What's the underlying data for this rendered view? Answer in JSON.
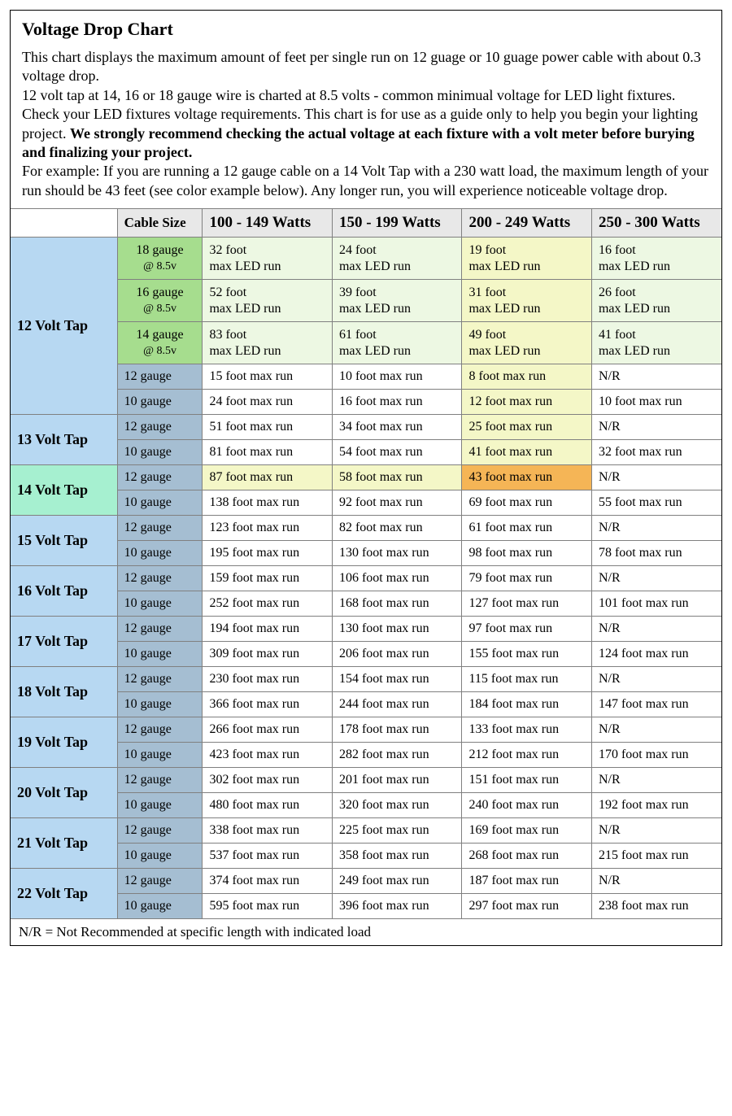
{
  "title": "Voltage Drop Chart",
  "intro": {
    "p1": "This chart displays the maximum amount of feet per single run on 12 guage or 10 guage power cable with about 0.3 voltage drop.",
    "p2a": "12 volt tap at 14, 16 or 18 gauge wire is charted at 8.5 volts - common minimual voltage for LED light fixtures. Check your LED fixtures voltage requirements. This chart is for use as a guide only to help you begin your lighting project. ",
    "p2bold": "We strongly recommend checking the actual voltage at each fixture with a volt meter before burying and finalizing your project.",
    "p3": "For example: If you are running a 12 gauge cable on a 14 Volt Tap with a 230 watt load, the maximum length of your run should be 43 feet (see color example below). Any longer run, you will experience noticeable voltage drop."
  },
  "columns": {
    "cableSize": "Cable Size",
    "w1": "100 - 149 Watts",
    "w2": "150 - 199 Watts",
    "w3": "200 - 249 Watts",
    "w4": "250 - 300 Watts"
  },
  "colors": {
    "tapBlue": "#b7d8f2",
    "tapMint": "#a6f0d0",
    "cableGreen": "#a6dd8e",
    "cableBlueGrey": "#a5bed2",
    "cellPaleGreen": "#edf8e3",
    "cellPaleYellow": "#f4f7c7",
    "cellYellow": "#f4f7c7",
    "cellOrange": "#f5b556",
    "rowHL": "#f4f7c7",
    "white": "#ffffff"
  },
  "groups": [
    {
      "tap": "12 Volt Tap",
      "tapBg": "tapBlue",
      "rows": [
        {
          "cable": "18 gauge",
          "sub": "@ 8.5v",
          "cableBg": "cableGreen",
          "led": true,
          "cells": [
            {
              "v": "32 foot",
              "bg": "cellPaleGreen"
            },
            {
              "v": "24 foot",
              "bg": "cellPaleGreen"
            },
            {
              "v": "19 foot",
              "bg": "cellPaleYellow"
            },
            {
              "v": "16 foot",
              "bg": "cellPaleGreen"
            }
          ]
        },
        {
          "cable": "16 gauge",
          "sub": "@ 8.5v",
          "cableBg": "cableGreen",
          "led": true,
          "cells": [
            {
              "v": "52 foot",
              "bg": "cellPaleGreen"
            },
            {
              "v": "39 foot",
              "bg": "cellPaleGreen"
            },
            {
              "v": "31 foot",
              "bg": "cellPaleYellow"
            },
            {
              "v": "26 foot",
              "bg": "cellPaleGreen"
            }
          ]
        },
        {
          "cable": "14 gauge",
          "sub": "@ 8.5v",
          "cableBg": "cableGreen",
          "led": true,
          "cells": [
            {
              "v": "83 foot",
              "bg": "cellPaleGreen"
            },
            {
              "v": "61 foot",
              "bg": "cellPaleGreen"
            },
            {
              "v": "49 foot",
              "bg": "cellPaleYellow"
            },
            {
              "v": "41 foot",
              "bg": "cellPaleGreen"
            }
          ]
        },
        {
          "cable": "12 gauge",
          "cableBg": "cableBlueGrey",
          "cells": [
            {
              "v": "15 foot max run"
            },
            {
              "v": "10 foot max run"
            },
            {
              "v": "8 foot max run",
              "bg": "cellYellow"
            },
            {
              "v": "N/R"
            }
          ]
        },
        {
          "cable": "10 gauge",
          "cableBg": "cableBlueGrey",
          "cells": [
            {
              "v": "24 foot max run"
            },
            {
              "v": "16 foot max run"
            },
            {
              "v": "12 foot max run",
              "bg": "cellYellow"
            },
            {
              "v": "10 foot max run"
            }
          ]
        }
      ]
    },
    {
      "tap": "13 Volt Tap",
      "tapBg": "tapBlue",
      "rows": [
        {
          "cable": "12 gauge",
          "cableBg": "cableBlueGrey",
          "cells": [
            {
              "v": "51 foot max run"
            },
            {
              "v": "34 foot max run"
            },
            {
              "v": "25 foot max run",
              "bg": "cellYellow"
            },
            {
              "v": "N/R"
            }
          ]
        },
        {
          "cable": "10 gauge",
          "cableBg": "cableBlueGrey",
          "cells": [
            {
              "v": "81 foot max run"
            },
            {
              "v": "54 foot max run"
            },
            {
              "v": "41 foot max run",
              "bg": "cellYellow"
            },
            {
              "v": "32 foot max run"
            }
          ]
        }
      ]
    },
    {
      "tap": "14 Volt Tap",
      "tapBg": "tapMint",
      "rows": [
        {
          "cable": "12 gauge",
          "cableBg": "cableBlueGrey",
          "cells": [
            {
              "v": "87 foot max run",
              "bg": "rowHL"
            },
            {
              "v": "58 foot max run",
              "bg": "rowHL"
            },
            {
              "v": "43 foot max run",
              "bg": "cellOrange"
            },
            {
              "v": "N/R"
            }
          ]
        },
        {
          "cable": "10 gauge",
          "cableBg": "cableBlueGrey",
          "cells": [
            {
              "v": "138 foot max run"
            },
            {
              "v": "92 foot max run"
            },
            {
              "v": "69 foot max run"
            },
            {
              "v": "55 foot max run"
            }
          ]
        }
      ]
    },
    {
      "tap": "15 Volt Tap",
      "tapBg": "tapBlue",
      "rows": [
        {
          "cable": "12 gauge",
          "cableBg": "cableBlueGrey",
          "cells": [
            {
              "v": "123 foot max run"
            },
            {
              "v": "82 foot max run"
            },
            {
              "v": "61 foot max run"
            },
            {
              "v": "N/R"
            }
          ]
        },
        {
          "cable": "10 gauge",
          "cableBg": "cableBlueGrey",
          "cells": [
            {
              "v": "195 foot max run"
            },
            {
              "v": "130 foot max run"
            },
            {
              "v": "98 foot max run"
            },
            {
              "v": "78 foot max run"
            }
          ]
        }
      ]
    },
    {
      "tap": "16 Volt Tap",
      "tapBg": "tapBlue",
      "rows": [
        {
          "cable": "12 gauge",
          "cableBg": "cableBlueGrey",
          "cells": [
            {
              "v": "159 foot max run"
            },
            {
              "v": "106 foot max run"
            },
            {
              "v": "79 foot max run"
            },
            {
              "v": "N/R"
            }
          ]
        },
        {
          "cable": "10 gauge",
          "cableBg": "cableBlueGrey",
          "cells": [
            {
              "v": "252 foot max run"
            },
            {
              "v": "168 foot max run"
            },
            {
              "v": "127 foot max run"
            },
            {
              "v": "101 foot max run"
            }
          ]
        }
      ]
    },
    {
      "tap": "17 Volt Tap",
      "tapBg": "tapBlue",
      "rows": [
        {
          "cable": "12 gauge",
          "cableBg": "cableBlueGrey",
          "cells": [
            {
              "v": "194 foot max run"
            },
            {
              "v": "130 foot max run"
            },
            {
              "v": "97 foot max run"
            },
            {
              "v": "N/R"
            }
          ]
        },
        {
          "cable": "10 gauge",
          "cableBg": "cableBlueGrey",
          "cells": [
            {
              "v": "309 foot max run"
            },
            {
              "v": "206 foot max run"
            },
            {
              "v": "155 foot max run"
            },
            {
              "v": "124 foot max run"
            }
          ]
        }
      ]
    },
    {
      "tap": "18 Volt Tap",
      "tapBg": "tapBlue",
      "rows": [
        {
          "cable": "12 gauge",
          "cableBg": "cableBlueGrey",
          "cells": [
            {
              "v": "230 foot max run"
            },
            {
              "v": "154 foot max run"
            },
            {
              "v": "115 foot max run"
            },
            {
              "v": "N/R"
            }
          ]
        },
        {
          "cable": "10 gauge",
          "cableBg": "cableBlueGrey",
          "cells": [
            {
              "v": "366 foot max run"
            },
            {
              "v": "244 foot max run"
            },
            {
              "v": "184 foot max run"
            },
            {
              "v": "147 foot max run"
            }
          ]
        }
      ]
    },
    {
      "tap": "19 Volt Tap",
      "tapBg": "tapBlue",
      "rows": [
        {
          "cable": "12 gauge",
          "cableBg": "cableBlueGrey",
          "cells": [
            {
              "v": "266 foot max run"
            },
            {
              "v": "178 foot max run"
            },
            {
              "v": "133 foot max run"
            },
            {
              "v": "N/R"
            }
          ]
        },
        {
          "cable": "10 gauge",
          "cableBg": "cableBlueGrey",
          "cells": [
            {
              "v": "423 foot max run"
            },
            {
              "v": "282 foot max run"
            },
            {
              "v": "212 foot max run"
            },
            {
              "v": "170 foot max run"
            }
          ]
        }
      ]
    },
    {
      "tap": "20 Volt Tap",
      "tapBg": "tapBlue",
      "rows": [
        {
          "cable": "12 gauge",
          "cableBg": "cableBlueGrey",
          "cells": [
            {
              "v": "302 foot max run"
            },
            {
              "v": "201 foot max run"
            },
            {
              "v": "151 foot max run"
            },
            {
              "v": "N/R"
            }
          ]
        },
        {
          "cable": "10 gauge",
          "cableBg": "cableBlueGrey",
          "cells": [
            {
              "v": "480 foot max run"
            },
            {
              "v": "320 foot max run"
            },
            {
              "v": "240 foot max run"
            },
            {
              "v": "192 foot max run"
            }
          ]
        }
      ]
    },
    {
      "tap": "21 Volt Tap",
      "tapBg": "tapBlue",
      "rows": [
        {
          "cable": "12 gauge",
          "cableBg": "cableBlueGrey",
          "cells": [
            {
              "v": "338 foot max run"
            },
            {
              "v": "225 foot max run"
            },
            {
              "v": "169 foot max run"
            },
            {
              "v": "N/R"
            }
          ]
        },
        {
          "cable": "10 gauge",
          "cableBg": "cableBlueGrey",
          "cells": [
            {
              "v": "537 foot max run"
            },
            {
              "v": "358 foot max run"
            },
            {
              "v": "268 foot max run"
            },
            {
              "v": "215 foot max run"
            }
          ]
        }
      ]
    },
    {
      "tap": "22 Volt Tap",
      "tapBg": "tapBlue",
      "rows": [
        {
          "cable": "12 gauge",
          "cableBg": "cableBlueGrey",
          "cells": [
            {
              "v": "374 foot max run"
            },
            {
              "v": "249 foot max run"
            },
            {
              "v": "187 foot max run"
            },
            {
              "v": "N/R"
            }
          ]
        },
        {
          "cable": "10 gauge",
          "cableBg": "cableBlueGrey",
          "cells": [
            {
              "v": "595 foot max run"
            },
            {
              "v": "396 foot max run"
            },
            {
              "v": "297 foot max run"
            },
            {
              "v": "238 foot max run"
            }
          ]
        }
      ]
    }
  ],
  "ledSuffix": "max LED run",
  "footnote": "N/R = Not Recommended at specific length with indicated load"
}
